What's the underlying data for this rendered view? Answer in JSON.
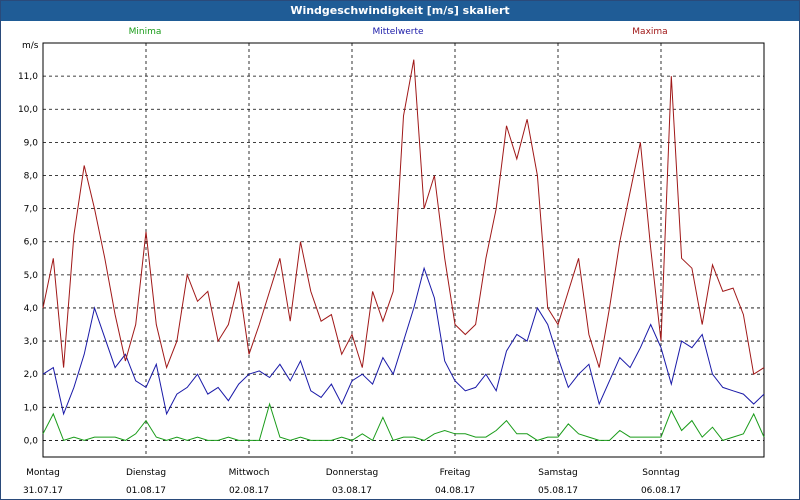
{
  "window": {
    "title": "Windgeschwindigkeit [m/s] skaliert"
  },
  "chart_data": {
    "type": "line",
    "title": "Windgeschwindigkeit [m/s] skaliert",
    "ylabel": "m/s",
    "ylim": [
      -0.5,
      12.0
    ],
    "yticks": [
      "0,0",
      "1,0",
      "2,0",
      "3,0",
      "4,0",
      "5,0",
      "6,0",
      "7,0",
      "8,0",
      "9,0",
      "10,0",
      "11,0"
    ],
    "ytick_values": [
      0,
      1,
      2,
      3,
      4,
      5,
      6,
      7,
      8,
      9,
      10,
      11
    ],
    "xlim": [
      0,
      7
    ],
    "x_categories": [
      {
        "day": "Montag",
        "date": "31.07.17"
      },
      {
        "day": "Dienstag",
        "date": "01.08.17"
      },
      {
        "day": "Mittwoch",
        "date": "02.08.17"
      },
      {
        "day": "Donnerstag",
        "date": "03.08.17"
      },
      {
        "day": "Freitag",
        "date": "04.08.17"
      },
      {
        "day": "Samstag",
        "date": "05.08.17"
      },
      {
        "day": "Sonntag",
        "date": "06.08.17"
      }
    ],
    "grid": true,
    "legend_position": "top",
    "series": [
      {
        "name": "Minima",
        "color": "#1a9c1a",
        "x": [
          0,
          0.1,
          0.2,
          0.3,
          0.4,
          0.5,
          0.6,
          0.7,
          0.8,
          0.9,
          1.0,
          1.1,
          1.2,
          1.3,
          1.4,
          1.5,
          1.6,
          1.7,
          1.8,
          1.9,
          2.0,
          2.1,
          2.2,
          2.3,
          2.4,
          2.5,
          2.6,
          2.7,
          2.8,
          2.9,
          3.0,
          3.1,
          3.2,
          3.3,
          3.4,
          3.5,
          3.6,
          3.7,
          3.8,
          3.9,
          4.0,
          4.1,
          4.2,
          4.3,
          4.4,
          4.5,
          4.6,
          4.7,
          4.8,
          4.9,
          5.0,
          5.1,
          5.2,
          5.3,
          5.4,
          5.5,
          5.6,
          5.7,
          5.8,
          5.9,
          6.0,
          6.1,
          6.2,
          6.3,
          6.4,
          6.5,
          6.6,
          6.7,
          6.8,
          6.9,
          7.0
        ],
        "values": [
          0.2,
          0.8,
          0,
          0.1,
          0,
          0.1,
          0.1,
          0.1,
          0,
          0.2,
          0.6,
          0.1,
          0,
          0.1,
          0,
          0.1,
          0,
          0,
          0.1,
          0,
          0,
          0,
          1.1,
          0.1,
          0,
          0.1,
          0,
          0,
          0,
          0.1,
          0,
          0.2,
          0,
          0.7,
          0,
          0.1,
          0.1,
          0,
          0.2,
          0.3,
          0.2,
          0.2,
          0.1,
          0.1,
          0.3,
          0.6,
          0.2,
          0.2,
          0,
          0.1,
          0.1,
          0.5,
          0.2,
          0.1,
          0,
          0,
          0.3,
          0.1,
          0.1,
          0.1,
          0.1,
          0.9,
          0.3,
          0.6,
          0.1,
          0.4,
          0,
          0.1,
          0.2,
          0.8,
          0.1
        ]
      },
      {
        "name": "Mittelwerte",
        "color": "#1a1aa8",
        "x": [
          0,
          0.1,
          0.2,
          0.3,
          0.4,
          0.5,
          0.6,
          0.7,
          0.8,
          0.9,
          1.0,
          1.1,
          1.2,
          1.3,
          1.4,
          1.5,
          1.6,
          1.7,
          1.8,
          1.9,
          2.0,
          2.1,
          2.2,
          2.3,
          2.4,
          2.5,
          2.6,
          2.7,
          2.8,
          2.9,
          3.0,
          3.1,
          3.2,
          3.3,
          3.4,
          3.5,
          3.6,
          3.7,
          3.8,
          3.9,
          4.0,
          4.1,
          4.2,
          4.3,
          4.4,
          4.5,
          4.6,
          4.7,
          4.8,
          4.9,
          5.0,
          5.1,
          5.2,
          5.3,
          5.4,
          5.5,
          5.6,
          5.7,
          5.8,
          5.9,
          6.0,
          6.1,
          6.2,
          6.3,
          6.4,
          6.5,
          6.6,
          6.7,
          6.8,
          6.9,
          7.0
        ],
        "values": [
          2.0,
          2.2,
          0.8,
          1.6,
          2.6,
          4.0,
          3.1,
          2.2,
          2.6,
          1.8,
          1.6,
          2.3,
          0.8,
          1.4,
          1.6,
          2.0,
          1.4,
          1.6,
          1.2,
          1.7,
          2.0,
          2.1,
          1.9,
          2.3,
          1.8,
          2.4,
          1.5,
          1.3,
          1.7,
          1.1,
          1.8,
          2.0,
          1.7,
          2.5,
          2.0,
          3.0,
          4.0,
          5.2,
          4.3,
          2.4,
          1.8,
          1.5,
          1.6,
          2.0,
          1.5,
          2.7,
          3.2,
          3.0,
          4.0,
          3.5,
          2.5,
          1.6,
          2.0,
          2.3,
          1.1,
          1.8,
          2.5,
          2.2,
          2.8,
          3.5,
          2.8,
          1.7,
          3.0,
          2.8,
          3.2,
          2.0,
          1.6,
          1.5,
          1.4,
          1.1,
          1.4
        ]
      },
      {
        "name": "Maxima",
        "color": "#a01818",
        "x": [
          0,
          0.1,
          0.2,
          0.3,
          0.4,
          0.5,
          0.6,
          0.7,
          0.8,
          0.9,
          1.0,
          1.1,
          1.2,
          1.3,
          1.4,
          1.5,
          1.6,
          1.7,
          1.8,
          1.9,
          2.0,
          2.1,
          2.2,
          2.3,
          2.4,
          2.5,
          2.6,
          2.7,
          2.8,
          2.9,
          3.0,
          3.1,
          3.2,
          3.3,
          3.4,
          3.5,
          3.6,
          3.7,
          3.8,
          3.9,
          4.0,
          4.1,
          4.2,
          4.3,
          4.4,
          4.5,
          4.6,
          4.7,
          4.8,
          4.9,
          5.0,
          5.1,
          5.2,
          5.3,
          5.4,
          5.5,
          5.6,
          5.7,
          5.8,
          5.9,
          6.0,
          6.1,
          6.2,
          6.3,
          6.4,
          6.5,
          6.6,
          6.7,
          6.8,
          6.9,
          7.0
        ],
        "values": [
          4.0,
          5.5,
          2.2,
          6.2,
          8.3,
          7.0,
          5.5,
          3.8,
          2.4,
          3.5,
          6.3,
          3.5,
          2.2,
          3.0,
          5.0,
          4.2,
          4.5,
          3.0,
          3.5,
          4.8,
          2.6,
          3.5,
          4.5,
          5.5,
          3.6,
          6.0,
          4.5,
          3.6,
          3.8,
          2.6,
          3.2,
          2.2,
          4.5,
          3.6,
          4.5,
          9.8,
          11.5,
          7.0,
          8.0,
          5.5,
          3.5,
          3.2,
          3.5,
          5.5,
          7.0,
          9.5,
          8.5,
          9.7,
          8.0,
          4.0,
          3.5,
          4.5,
          5.5,
          3.2,
          2.2,
          4.0,
          6.0,
          7.5,
          9.0,
          5.8,
          3.0,
          11.0,
          5.5,
          5.2,
          3.5,
          5.3,
          4.5,
          4.6,
          3.8,
          2.0,
          2.2
        ]
      }
    ]
  }
}
